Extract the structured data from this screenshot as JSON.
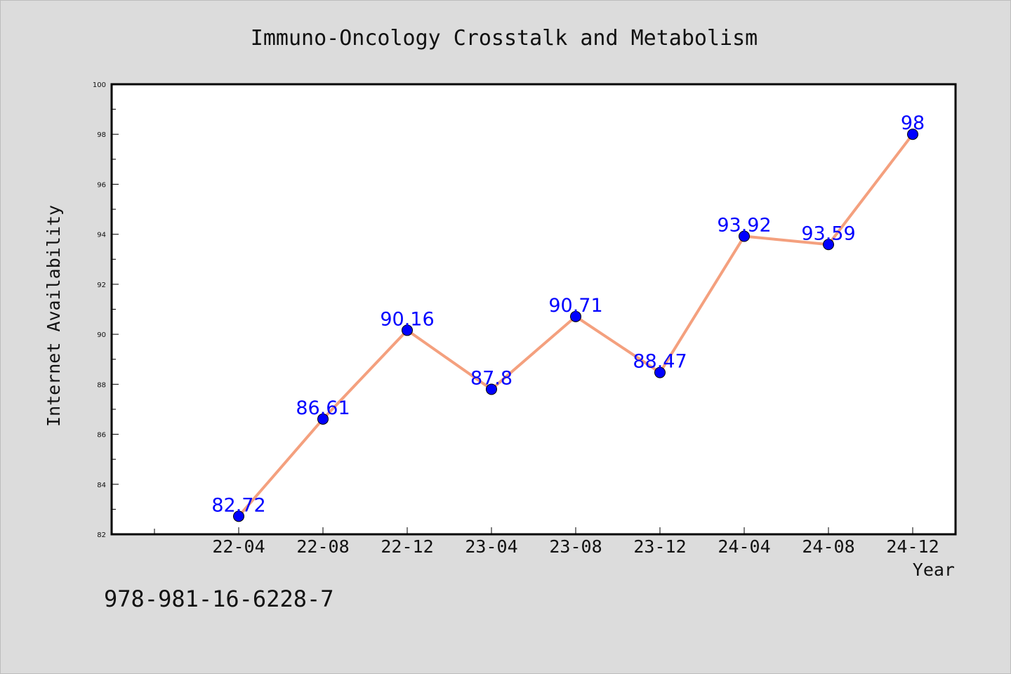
{
  "chart_data": {
    "type": "line",
    "title": "Immuno-Oncology Crosstalk and Metabolism",
    "xlabel": "Year",
    "ylabel": "Internet Availability",
    "categories": [
      "22-04",
      "22-08",
      "22-12",
      "23-04",
      "23-08",
      "23-12",
      "24-04",
      "24-08",
      "24-12"
    ],
    "series": [
      {
        "values": [
          82.72,
          86.61,
          90.16,
          87.8,
          90.71,
          88.47,
          93.92,
          93.59,
          98
        ],
        "labels": [
          "82.72",
          "86.61",
          "90.16",
          "87.8",
          "90.71",
          "88.47",
          "93.92",
          "93.59",
          "98"
        ],
        "line_color": "#f4a07e",
        "marker_color": "#0000ff"
      }
    ],
    "ylim": [
      82,
      100
    ],
    "yticks": [
      "82",
      "84",
      "86",
      "88",
      "90",
      "92",
      "94",
      "96",
      "98",
      "100"
    ],
    "grid": false,
    "legend": "none"
  },
  "annotation": "978-981-16-6228-7"
}
